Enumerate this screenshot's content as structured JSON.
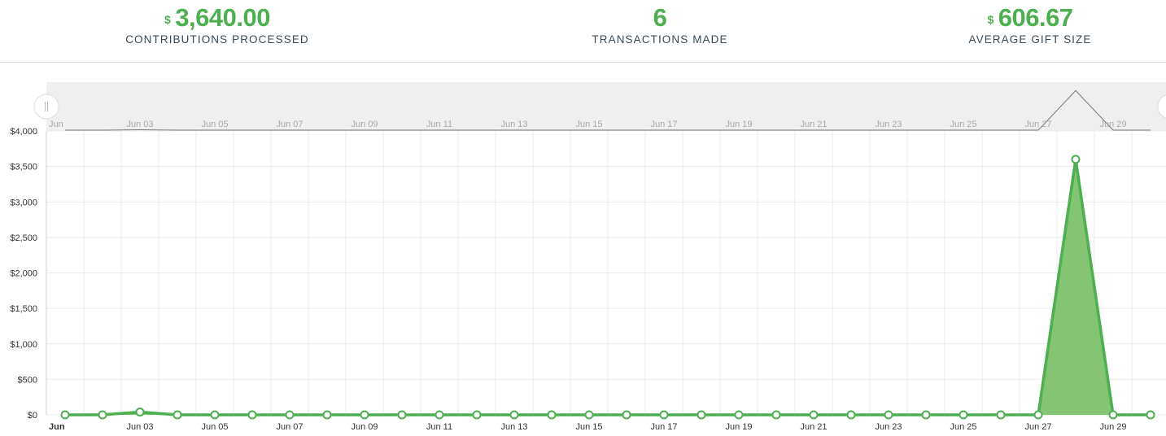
{
  "stats": {
    "contributions": {
      "currency": "$",
      "value": "3,640.00",
      "label": "CONTRIBUTIONS PROCESSED"
    },
    "transactions": {
      "value": "6",
      "label": "TRANSACTIONS MADE"
    },
    "average": {
      "currency": "$",
      "value": "606.67",
      "label": "AVERAGE GIFT SIZE"
    }
  },
  "colors": {
    "accent": "#4caf50",
    "area": "#7cc26b",
    "navigator_bg": "#efefef",
    "grid": "#ececec"
  },
  "chart_data": {
    "type": "area",
    "x": [
      "Jun 01",
      "Jun 02",
      "Jun 03",
      "Jun 04",
      "Jun 05",
      "Jun 06",
      "Jun 07",
      "Jun 08",
      "Jun 09",
      "Jun 10",
      "Jun 11",
      "Jun 12",
      "Jun 13",
      "Jun 14",
      "Jun 15",
      "Jun 16",
      "Jun 17",
      "Jun 18",
      "Jun 19",
      "Jun 20",
      "Jun 21",
      "Jun 22",
      "Jun 23",
      "Jun 24",
      "Jun 25",
      "Jun 26",
      "Jun 27",
      "Jun 28",
      "Jun 29",
      "Jun 30"
    ],
    "series": [
      {
        "values": [
          0,
          0,
          40,
          0,
          0,
          0,
          0,
          0,
          0,
          0,
          0,
          0,
          0,
          0,
          0,
          0,
          0,
          0,
          0,
          0,
          0,
          0,
          0,
          0,
          0,
          0,
          0,
          3600,
          0,
          0
        ]
      }
    ],
    "x_tick_labels": [
      "Jun",
      "Jun 03",
      "Jun 05",
      "Jun 07",
      "Jun 09",
      "Jun 11",
      "Jun 13",
      "Jun 15",
      "Jun 17",
      "Jun 19",
      "Jun 21",
      "Jun 23",
      "Jun 25",
      "Jun 27",
      "Jun 29"
    ],
    "navigator_tick_labels": [
      "Jun",
      "Jun 03",
      "Jun 05",
      "Jun 07",
      "Jun 09",
      "Jun 11",
      "Jun 13",
      "Jun 15",
      "Jun 17",
      "Jun 19",
      "Jun 21",
      "Jun 23",
      "Jun 25",
      "Jun 27",
      "Jun 29"
    ],
    "y_tick_labels": [
      "$0",
      "$500",
      "$1,000",
      "$1,500",
      "$2,000",
      "$2,500",
      "$3,000",
      "$3,500",
      "$4,000"
    ],
    "ylim": [
      0,
      4000
    ],
    "grid": true,
    "navigator": true
  }
}
